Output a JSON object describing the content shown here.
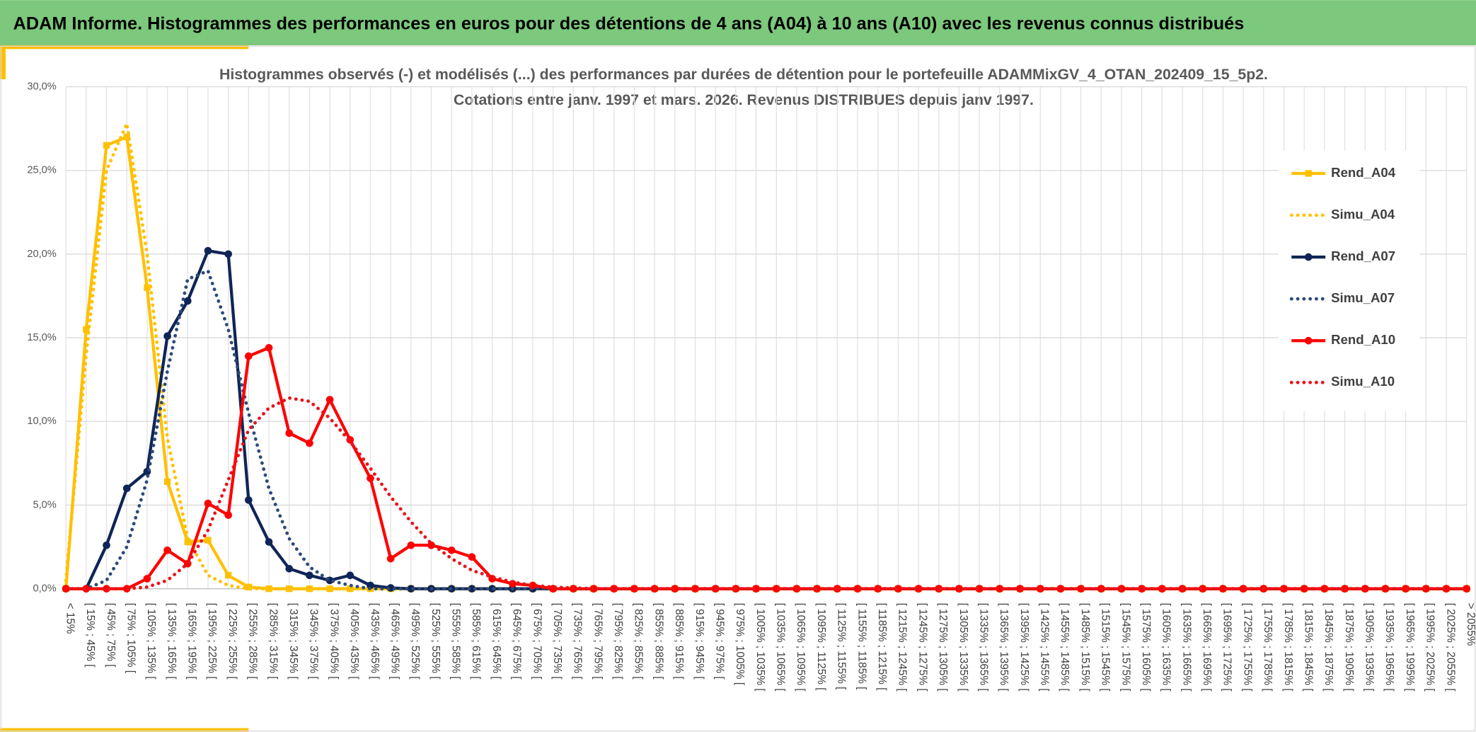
{
  "header": {
    "title": "ADAM Informe. Histogrammes des performances en euros pour des détentions de 4 ans (A04) à 10 ans (A10) avec les revenus connus distribués"
  },
  "chart_data": {
    "type": "line",
    "title": "Histogrammes observés (-) et modélisés (...) des performances par durées de détention pour le portefeuille ADAMMixGV_4_OTAN_202409_15_5p2.",
    "subtitle": "Cotations entre janv. 1997 et mars. 2026. Revenus DISTRIBUES depuis janv 1997.",
    "categories": [
      "< 15%",
      "[ 15% ; 45% [",
      "[ 45% ; 75% [",
      "[ 75% ; 105% [",
      "[ 105% ; 135% [",
      "[ 135% ; 165% [",
      "[ 165% ; 195% [",
      "[ 195% ; 225% [",
      "[ 225% ; 255% [",
      "[ 255% ; 285% [",
      "[ 285% ; 315% [",
      "[ 315% ; 345% [",
      "[ 345% ; 375% [",
      "[ 375% ; 405% [",
      "[ 405% ; 435% [",
      "[ 435% ; 465% [",
      "[ 465% ; 495% [",
      "[ 495% ; 525% [",
      "[ 525% ; 555% [",
      "[ 555% ; 585% [",
      "[ 585% ; 615% [",
      "[ 615% ; 645% [",
      "[ 645% ; 675% [",
      "[ 675% ; 705% [",
      "[ 705% ; 735% [",
      "[ 735% ; 765% [",
      "[ 765% ; 795% [",
      "[ 795% ; 825% [",
      "[ 825% ; 855% [",
      "[ 855% ; 885% [",
      "[ 885% ; 915% [",
      "[ 915% ; 945% [",
      "[ 945% ; 975% [",
      "[ 975% ; 1005% [",
      "[ 1005% ; 1035% [",
      "[ 1035% ; 1065% [",
      "[ 1065% ; 1095% [",
      "[ 1095% ; 1125% [",
      "[ 1125% ; 1155% [",
      "[ 1155% ; 1185% [",
      "[ 1185% ; 1215% [",
      "[ 1215% ; 1245% [",
      "[ 1245% ; 1275% [",
      "[ 1275% ; 1305% [",
      "[ 1305% ; 1335% [",
      "[ 1335% ; 1365% [",
      "[ 1365% ; 1395% [",
      "[ 1395% ; 1425% [",
      "[ 1425% ; 1455% [",
      "[ 1455% ; 1485% [",
      "[ 1485% ; 1515% [",
      "[ 1515% ; 1545% [",
      "[ 1545% ; 1575% [",
      "[ 1575% ; 1605% [",
      "[ 1605% ; 1635% [",
      "[ 1635% ; 1665% [",
      "[ 1665% ; 1695% [",
      "[ 1695% ; 1725% [",
      "[ 1725% ; 1755% [",
      "[ 1755% ; 1785% [",
      "[ 1785% ; 1815% [",
      "[ 1815% ; 1845% [",
      "[ 1845% ; 1875% [",
      "[ 1875% ; 1905% [",
      "[ 1905% ; 1935% [",
      "[ 1935% ; 1965% [",
      "[ 1965% ; 1995% [",
      "[ 1995% ; 2025% [",
      "[ 2025% ; 2055% [",
      "> 2055%"
    ],
    "series": [
      {
        "name": "Rend_A04",
        "color": "#ffc000",
        "marker": "square",
        "dashed": false,
        "values": [
          0,
          15.5,
          26.5,
          27,
          18,
          6.4,
          2.8,
          2.9,
          0.8,
          0.1,
          0,
          0,
          0,
          0,
          0,
          0,
          0,
          0,
          0,
          0,
          0,
          0,
          0,
          0,
          0,
          0,
          0,
          0,
          0,
          0,
          0,
          0,
          0,
          0,
          0,
          0,
          0,
          0,
          0,
          0,
          0,
          0,
          0,
          0,
          0,
          0,
          0,
          0,
          0,
          0,
          0,
          0,
          0,
          0,
          0,
          0,
          0,
          0,
          0,
          0,
          0,
          0,
          0,
          0,
          0,
          0,
          0,
          0,
          0,
          0
        ]
      },
      {
        "name": "Simu_A04",
        "color": "#ffc000",
        "marker": "none",
        "dashed": true,
        "values": [
          0.5,
          14,
          25,
          27.8,
          20,
          9,
          3,
          0.8,
          0.2,
          0,
          0,
          0,
          0,
          0,
          0,
          0,
          0,
          0,
          0,
          0,
          0,
          0,
          0,
          0,
          0,
          0,
          0,
          0,
          0,
          0,
          0,
          0,
          0,
          0,
          0,
          0,
          0,
          0,
          0,
          0,
          0,
          0,
          0,
          0,
          0,
          0,
          0,
          0,
          0,
          0,
          0,
          0,
          0,
          0,
          0,
          0,
          0,
          0,
          0,
          0,
          0,
          0,
          0,
          0,
          0,
          0,
          0,
          0,
          0,
          0
        ]
      },
      {
        "name": "Rend_A07",
        "color": "#0f2557",
        "marker": "circle",
        "dashed": false,
        "values": [
          0,
          0,
          2.6,
          6,
          7,
          15.1,
          17.2,
          20.2,
          20,
          5.3,
          2.8,
          1.2,
          0.8,
          0.5,
          0.8,
          0.2,
          0.05,
          0,
          0,
          0,
          0,
          0,
          0,
          0,
          0,
          0,
          0,
          0,
          0,
          0,
          0,
          0,
          0,
          0,
          0,
          0,
          0,
          0,
          0,
          0,
          0,
          0,
          0,
          0,
          0,
          0,
          0,
          0,
          0,
          0,
          0,
          0,
          0,
          0,
          0,
          0,
          0,
          0,
          0,
          0,
          0,
          0,
          0,
          0,
          0,
          0,
          0,
          0,
          0,
          0
        ]
      },
      {
        "name": "Simu_A07",
        "color": "#2b4a78",
        "marker": "none",
        "dashed": true,
        "values": [
          0,
          0,
          0.5,
          2.5,
          6.5,
          13,
          18.5,
          19,
          15.5,
          10.5,
          6,
          3,
          1.3,
          0.5,
          0.2,
          0,
          0,
          0,
          0,
          0,
          0,
          0,
          0,
          0,
          0,
          0,
          0,
          0,
          0,
          0,
          0,
          0,
          0,
          0,
          0,
          0,
          0,
          0,
          0,
          0,
          0,
          0,
          0,
          0,
          0,
          0,
          0,
          0,
          0,
          0,
          0,
          0,
          0,
          0,
          0,
          0,
          0,
          0,
          0,
          0,
          0,
          0,
          0,
          0,
          0,
          0,
          0,
          0,
          0,
          0
        ]
      },
      {
        "name": "Rend_A10",
        "color": "#ff0000",
        "marker": "circle",
        "dashed": false,
        "values": [
          0,
          0,
          0,
          0,
          0.6,
          2.3,
          1.5,
          5.1,
          4.4,
          13.9,
          14.4,
          9.3,
          8.7,
          11.3,
          8.9,
          6.6,
          1.8,
          2.6,
          2.6,
          2.3,
          1.9,
          0.6,
          0.3,
          0.2,
          0,
          0,
          0,
          0,
          0,
          0,
          0,
          0,
          0,
          0,
          0,
          0,
          0,
          0,
          0,
          0,
          0,
          0,
          0,
          0,
          0,
          0,
          0,
          0,
          0,
          0,
          0,
          0,
          0,
          0,
          0,
          0,
          0,
          0,
          0,
          0,
          0,
          0,
          0,
          0,
          0,
          0,
          0,
          0,
          0,
          0
        ]
      },
      {
        "name": "Simu_A10",
        "color": "#e8141b",
        "marker": "none",
        "dashed": true,
        "values": [
          0,
          0,
          0,
          0,
          0.1,
          0.5,
          1.5,
          3.5,
          6.5,
          9.5,
          10.8,
          11.4,
          11.2,
          10.2,
          8.8,
          7.2,
          5.5,
          4,
          2.7,
          1.8,
          1.1,
          0.7,
          0.4,
          0.2,
          0.1,
          0.05,
          0,
          0,
          0,
          0,
          0,
          0,
          0,
          0,
          0,
          0,
          0,
          0,
          0,
          0,
          0,
          0,
          0,
          0,
          0,
          0,
          0,
          0,
          0,
          0,
          0,
          0,
          0,
          0,
          0,
          0,
          0,
          0,
          0,
          0,
          0,
          0,
          0,
          0,
          0,
          0,
          0,
          0,
          0,
          0
        ]
      }
    ],
    "ylim": [
      0,
      30
    ],
    "yticks": [
      {
        "value": 0,
        "label": "0,0%"
      },
      {
        "value": 5,
        "label": "5,0%"
      },
      {
        "value": 10,
        "label": "10,0%"
      },
      {
        "value": 15,
        "label": "15,0%"
      },
      {
        "value": 20,
        "label": "20,0%"
      },
      {
        "value": 25,
        "label": "25,0%"
      },
      {
        "value": 30,
        "label": "30,0%"
      }
    ],
    "grid": true,
    "legend": "right"
  }
}
